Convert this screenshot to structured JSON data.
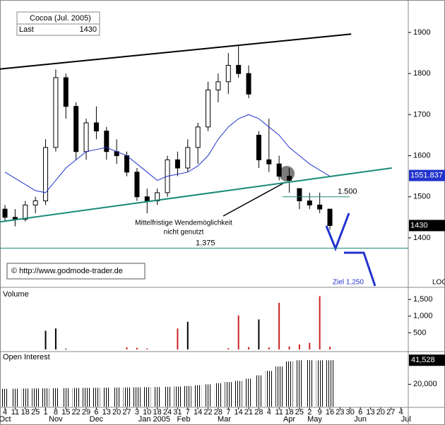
{
  "chart_data": [
    {
      "type": "candlestick",
      "title": "Cocoa (Jul. 2005)",
      "last_caption": "Last",
      "last": 1430,
      "ylim": [
        1283,
        1979
      ],
      "yticks": [
        1400,
        1500,
        1600,
        1700,
        1800,
        1900
      ],
      "xlim": [
        -0.49,
        39.72
      ],
      "x": [
        0,
        1,
        2,
        3,
        4,
        5,
        6,
        7,
        8,
        9,
        10,
        11,
        12,
        13,
        14,
        15,
        16,
        17,
        18,
        19,
        20,
        21,
        22,
        23,
        24,
        25,
        26,
        27,
        28,
        29,
        30,
        31,
        32
      ],
      "open": [
        1470,
        1450,
        1445,
        1480,
        1490,
        1620,
        1790,
        1720,
        1610,
        1680,
        1660,
        1610,
        1600,
        1560,
        1500,
        1490,
        1510,
        1590,
        1570,
        1620,
        1670,
        1760,
        1780,
        1820,
        1800,
        1650,
        1590,
        1580,
        1550,
        1520,
        1490,
        1480,
        1470
      ],
      "high": [
        1480,
        1470,
        1490,
        1500,
        1640,
        1810,
        1800,
        1730,
        1690,
        1720,
        1670,
        1640,
        1610,
        1570,
        1520,
        1520,
        1600,
        1610,
        1640,
        1680,
        1780,
        1800,
        1850,
        1870,
        1820,
        1660,
        1690,
        1600,
        1570,
        1520,
        1510,
        1510,
        1470
      ],
      "low": [
        1440,
        1428,
        1440,
        1460,
        1480,
        1610,
        1690,
        1590,
        1590,
        1640,
        1590,
        1580,
        1550,
        1490,
        1460,
        1480,
        1500,
        1550,
        1560,
        1580,
        1660,
        1730,
        1750,
        1790,
        1740,
        1570,
        1560,
        1540,
        1510,
        1470,
        1470,
        1460,
        1420
      ],
      "close": [
        1450,
        1445,
        1480,
        1490,
        1620,
        1790,
        1720,
        1610,
        1680,
        1660,
        1610,
        1600,
        1560,
        1500,
        1490,
        1510,
        1590,
        1570,
        1620,
        1670,
        1760,
        1780,
        1820,
        1800,
        1750,
        1590,
        1580,
        1550,
        1540,
        1490,
        1480,
        1470,
        1430
      ],
      "moving_average": {
        "color": "#2233cc",
        "label": 1551.837,
        "values": [
          1560,
          1545,
          1530,
          1515,
          1510,
          1540,
          1570,
          1590,
          1610,
          1615,
          1620,
          1610,
          1600,
          1580,
          1560,
          1540,
          1550,
          1555,
          1560,
          1575,
          1600,
          1640,
          1670,
          1690,
          1700,
          1690,
          1670,
          1650,
          1620,
          1600,
          1580,
          1565,
          1550
        ]
      },
      "trendlines": [
        {
          "color": "#000000",
          "x": [
            -0.49,
            34.1
          ],
          "y": [
            1811,
            1896
          ]
        },
        {
          "color": "#1a8a7a",
          "x": [
            -0.49,
            38.1
          ],
          "y": [
            1439,
            1570
          ]
        }
      ],
      "levels": [
        {
          "value": 1375,
          "label": "1.375",
          "color": "#1a8a7a"
        },
        {
          "value": 1500,
          "label": "1.500",
          "color": "#1a8a7a"
        }
      ],
      "annotations": [
        "Mittelfristige Wendemöglichkeit",
        "nicht genutzt",
        "© http://www.godmode-trader.de",
        "Ziel 1,250",
        "LOC"
      ]
    },
    {
      "type": "bar",
      "title": "Volume",
      "ylim": [
        0,
        1800
      ],
      "xlim": [
        -0.49,
        39.72
      ],
      "yticks": [
        {
          "value": 500,
          "label": "500"
        },
        {
          "value": 1000,
          "label": "1,000"
        },
        {
          "value": 1500,
          "label": "1,500"
        }
      ],
      "x": [
        0,
        1,
        2,
        3,
        4,
        5,
        6,
        7,
        8,
        9,
        10,
        11,
        12,
        13,
        14,
        15,
        16,
        17,
        18,
        19,
        20,
        21,
        22,
        23,
        24,
        25,
        26,
        27,
        28,
        29,
        30,
        31,
        32
      ],
      "values": [
        0,
        0,
        0,
        0,
        560,
        630,
        20,
        0,
        0,
        0,
        0,
        0,
        60,
        50,
        30,
        0,
        0,
        630,
        830,
        0,
        0,
        0,
        40,
        1020,
        70,
        900,
        60,
        1400,
        90,
        150,
        200,
        1600,
        80
      ],
      "colors": [
        "#000000",
        "#000000",
        "#000000",
        "#000000",
        "#000000",
        "#000000",
        "#000000",
        "#000000",
        "#000000",
        "#000000",
        "#000000",
        "#000000",
        "#cc2222",
        "#cc2222",
        "#cc2222",
        "#cc2222",
        "#cc2222",
        "#cc2222",
        "#000000",
        "#cc2222",
        "#cc2222",
        "#cc2222",
        "#cc2222",
        "#cc2222",
        "#cc2222",
        "#000000",
        "#cc2222",
        "#cc2222",
        "#cc2222",
        "#cc2222",
        "#cc2222",
        "#cc2222",
        "#cc2222"
      ]
    },
    {
      "type": "bar",
      "title": "Open Interest",
      "ylim": [
        0,
        48000
      ],
      "xlim": [
        -0.49,
        39.72
      ],
      "yticks": [
        {
          "value": 20000,
          "label": "20,000"
        }
      ],
      "last": {
        "value": 41528,
        "label": "41,528"
      },
      "x": [
        0,
        1,
        2,
        3,
        4,
        5,
        6,
        7,
        8,
        9,
        10,
        11,
        12,
        13,
        14,
        15,
        16,
        17,
        18,
        19,
        20,
        21,
        22,
        23,
        24,
        25,
        26,
        27,
        28,
        29,
        30,
        31,
        32
      ],
      "values": [
        16000,
        16100,
        16200,
        16300,
        16400,
        16500,
        16600,
        16700,
        16800,
        16900,
        17000,
        17100,
        17200,
        17300,
        17400,
        17500,
        17700,
        18000,
        18500,
        19200,
        20000,
        21000,
        22000,
        23000,
        25000,
        28000,
        32000,
        36000,
        40500,
        41500,
        41600,
        41400,
        41528
      ],
      "xticks": [
        {
          "value": 0,
          "label": "4"
        },
        {
          "value": 1,
          "label": "11"
        },
        {
          "value": 2,
          "label": "18"
        },
        {
          "value": 3,
          "label": "25"
        },
        {
          "value": 4,
          "label": "1"
        },
        {
          "value": 5,
          "label": "8"
        },
        {
          "value": 6,
          "label": "15"
        },
        {
          "value": 7,
          "label": "22"
        },
        {
          "value": 8,
          "label": "29"
        },
        {
          "value": 9,
          "label": "6"
        },
        {
          "value": 10,
          "label": "13"
        },
        {
          "value": 11,
          "label": "20"
        },
        {
          "value": 12,
          "label": "27"
        },
        {
          "value": 13,
          "label": "3"
        },
        {
          "value": 14,
          "label": "10"
        },
        {
          "value": 15,
          "label": "18"
        },
        {
          "value": 16,
          "label": "24"
        },
        {
          "value": 17,
          "label": "31"
        },
        {
          "value": 18,
          "label": "7"
        },
        {
          "value": 19,
          "label": "14"
        },
        {
          "value": 20,
          "label": "22"
        },
        {
          "value": 21,
          "label": "28"
        },
        {
          "value": 22,
          "label": "7"
        },
        {
          "value": 23,
          "label": "14"
        },
        {
          "value": 24,
          "label": "21"
        },
        {
          "value": 25,
          "label": "28"
        },
        {
          "value": 26,
          "label": "4"
        },
        {
          "value": 27,
          "label": "11"
        },
        {
          "value": 28,
          "label": "18"
        },
        {
          "value": 29,
          "label": "25"
        },
        {
          "value": 30,
          "label": "2"
        },
        {
          "value": 31,
          "label": "9"
        },
        {
          "value": 32,
          "label": "16"
        },
        {
          "value": 33,
          "label": "23"
        },
        {
          "value": 34,
          "label": "30"
        },
        {
          "value": 35,
          "label": "6"
        },
        {
          "value": 36,
          "label": "13"
        },
        {
          "value": 37,
          "label": "20"
        },
        {
          "value": 38,
          "label": "27"
        },
        {
          "value": 39,
          "label": "4"
        }
      ],
      "month_labels": [
        {
          "value": 0,
          "label": "Oct"
        },
        {
          "value": 5,
          "label": "Nov"
        },
        {
          "value": 9,
          "label": "Dec"
        },
        {
          "value": 14.7,
          "label": "Jan 2005"
        },
        {
          "value": 17.6,
          "label": "Feb"
        },
        {
          "value": 21.6,
          "label": "Mar"
        },
        {
          "value": 28,
          "label": "Apr"
        },
        {
          "value": 30.5,
          "label": "May"
        },
        {
          "value": 35,
          "label": "Jun"
        },
        {
          "value": 39.5,
          "label": "Jul"
        }
      ]
    }
  ]
}
